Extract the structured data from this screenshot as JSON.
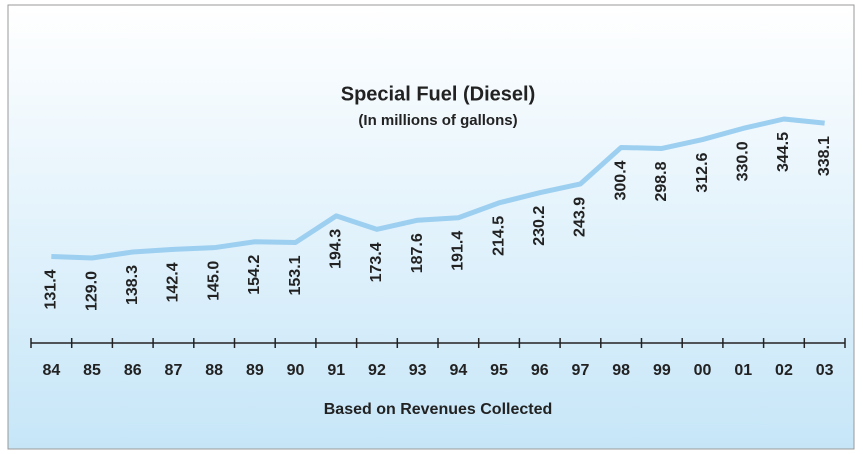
{
  "chart_data": {
    "type": "line",
    "title": "Special  Fuel (Diesel)",
    "subtitle": "(In millions of gallons)",
    "x_label": "Based on Revenues Collected",
    "categories": [
      "84",
      "85",
      "86",
      "87",
      "88",
      "89",
      "90",
      "91",
      "92",
      "93",
      "94",
      "95",
      "96",
      "97",
      "98",
      "99",
      "00",
      "01",
      "02",
      "03"
    ],
    "values": [
      131.4,
      129.0,
      138.3,
      142.4,
      145.0,
      154.2,
      153.1,
      194.3,
      173.4,
      187.6,
      191.4,
      214.5,
      230.2,
      243.9,
      300.4,
      298.8,
      312.6,
      330.0,
      344.5,
      338.1
    ],
    "value_labels": [
      "131.4",
      "129.0",
      "138.3",
      "142.4",
      "145.0",
      "154.2",
      "153.1",
      "194.3",
      "173.4",
      "187.6",
      "191.4",
      "214.5",
      "230.2",
      "243.9",
      "300.4",
      "298.8",
      "312.6",
      "330.0",
      "344.5",
      "338.1"
    ],
    "color": "#9dcff0"
  }
}
